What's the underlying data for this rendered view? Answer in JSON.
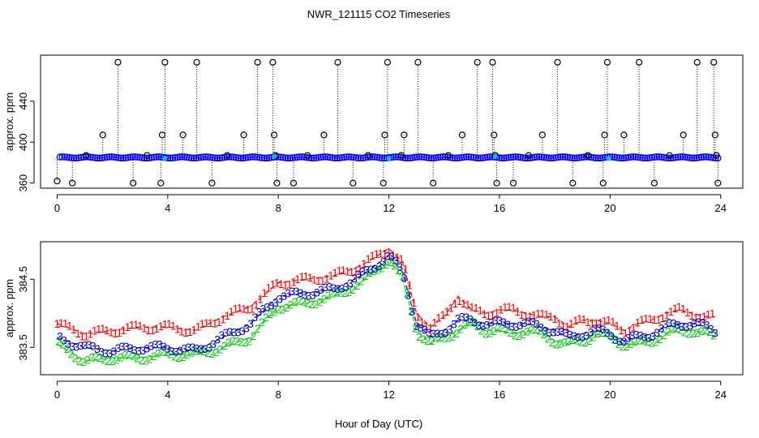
{
  "figure": {
    "title": "NWR_121115  CO2 Timeseries",
    "shared_xlabel": "Hour of Day (UTC)"
  },
  "colors": {
    "axis": "#000000",
    "stems": "#000000",
    "blue_series": "#0000ff",
    "cyan_points": "#00c8c8",
    "series1": "#ff0000",
    "series2": "#00cc00",
    "series3": "#0000cc"
  },
  "chart_data": [
    {
      "type": "scatter",
      "title": "NWR_121115  CO2 Timeseries",
      "xlabel": "",
      "ylabel": "approx. ppm",
      "xlim": [
        -0.6,
        24.8
      ],
      "ylim": [
        355,
        485
      ],
      "xticks": [
        0,
        4,
        8,
        12,
        16,
        20,
        24
      ],
      "yticks": [
        360,
        400,
        440
      ],
      "baseline": 385,
      "baseline_range": [
        0.1,
        23.9
      ],
      "series": [
        {
          "name": "outlier spikes (circles with dotted stems)",
          "marker": "open-circle",
          "points": [
            [
              0,
              362
            ],
            [
              0.55,
              360
            ],
            [
              1.05,
              387
            ],
            [
              1.65,
              407
            ],
            [
              2.2,
              478
            ],
            [
              2.75,
              360
            ],
            [
              3.25,
              387
            ],
            [
              3.75,
              360
            ],
            [
              3.8,
              407
            ],
            [
              3.9,
              478
            ],
            [
              4.55,
              407
            ],
            [
              5.05,
              478
            ],
            [
              5.6,
              360
            ],
            [
              6.15,
              387
            ],
            [
              6.75,
              407
            ],
            [
              7.25,
              478
            ],
            [
              7.8,
              478
            ],
            [
              7.85,
              407
            ],
            [
              7.9,
              387
            ],
            [
              7.95,
              360
            ],
            [
              8.55,
              360
            ],
            [
              9.05,
              387
            ],
            [
              9.65,
              407
            ],
            [
              10.15,
              478
            ],
            [
              10.7,
              360
            ],
            [
              11.25,
              387
            ],
            [
              11.8,
              360
            ],
            [
              11.85,
              407
            ],
            [
              11.95,
              478
            ],
            [
              12.45,
              387
            ],
            [
              12.55,
              407
            ],
            [
              13.05,
              478
            ],
            [
              13.6,
              360
            ],
            [
              14.15,
              387
            ],
            [
              14.65,
              407
            ],
            [
              15.2,
              478
            ],
            [
              15.75,
              478
            ],
            [
              15.8,
              407
            ],
            [
              15.85,
              387
            ],
            [
              15.9,
              360
            ],
            [
              16.5,
              360
            ],
            [
              17.05,
              387
            ],
            [
              17.55,
              407
            ],
            [
              18.1,
              478
            ],
            [
              18.65,
              360
            ],
            [
              19.2,
              387
            ],
            [
              19.75,
              360
            ],
            [
              19.8,
              407
            ],
            [
              19.9,
              478
            ],
            [
              20.5,
              407
            ],
            [
              21.05,
              478
            ],
            [
              21.6,
              360
            ],
            [
              22.15,
              387
            ],
            [
              22.65,
              407
            ],
            [
              23.15,
              478
            ],
            [
              23.75,
              478
            ],
            [
              23.8,
              407
            ],
            [
              23.85,
              387
            ],
            [
              23.9,
              360
            ]
          ]
        },
        {
          "name": "cyan points",
          "marker": "filled-dot",
          "points": [
            [
              3.9,
              384
            ],
            [
              7.85,
              386
            ],
            [
              12.0,
              384
            ],
            [
              15.85,
              386
            ],
            [
              19.95,
              384
            ]
          ]
        }
      ]
    },
    {
      "type": "line",
      "xlabel": "Hour of Day (UTC)",
      "ylabel": "approx. ppm",
      "xlim": [
        -0.6,
        24.8
      ],
      "ylim": [
        383.1,
        385.05
      ],
      "xticks": [
        0,
        4,
        8,
        12,
        16,
        20,
        24
      ],
      "yticks": [
        383.5,
        384.5
      ],
      "marker": "series number",
      "series": [
        {
          "name": "1",
          "x": [
            0,
            1,
            2,
            3,
            4,
            5,
            6,
            7,
            8,
            9,
            10,
            11,
            12,
            12.5,
            13,
            13.5,
            14,
            14.5,
            15,
            15.5,
            16,
            16.5,
            17,
            17.5,
            18,
            18.5,
            19,
            19.5,
            20,
            20.5,
            21,
            21.5,
            22,
            22.5,
            23,
            23.5,
            23.8
          ],
          "values": [
            383.85,
            383.7,
            383.75,
            383.8,
            383.8,
            383.75,
            383.95,
            384.1,
            384.45,
            384.5,
            384.55,
            384.7,
            384.95,
            384.75,
            384.0,
            383.8,
            383.95,
            384.25,
            384.05,
            384.0,
            384.05,
            384.05,
            384.0,
            383.95,
            383.95,
            383.8,
            383.9,
            383.9,
            383.85,
            383.75,
            383.85,
            383.9,
            384.0,
            384.05,
            384.0,
            383.95,
            383.95
          ]
        },
        {
          "name": "2",
          "x": [
            0,
            1,
            2,
            3,
            4,
            5,
            6,
            7,
            8,
            9,
            10,
            11,
            12,
            12.5,
            13,
            13.5,
            14,
            14.5,
            15,
            15.5,
            16,
            16.5,
            17,
            17.5,
            18,
            18.5,
            19,
            19.5,
            20,
            20.5,
            21,
            21.5,
            22,
            22.5,
            23,
            23.5,
            23.8
          ],
          "values": [
            383.55,
            383.3,
            383.35,
            383.35,
            383.4,
            383.4,
            383.5,
            383.65,
            384.1,
            384.15,
            384.25,
            384.45,
            384.8,
            384.5,
            383.75,
            383.55,
            383.65,
            383.75,
            383.85,
            383.75,
            383.75,
            383.7,
            383.75,
            383.7,
            383.6,
            383.55,
            383.6,
            383.7,
            383.65,
            383.55,
            383.55,
            383.6,
            383.7,
            383.75,
            383.75,
            383.7,
            383.65
          ]
        },
        {
          "name": "3",
          "x": [
            0,
            1,
            2,
            3,
            4,
            5,
            6,
            7,
            8,
            9,
            10,
            11,
            12,
            12.5,
            13,
            13.5,
            14,
            14.5,
            15,
            15.5,
            16,
            16.5,
            17,
            17.5,
            18,
            18.5,
            19,
            19.5,
            20,
            20.5,
            21,
            21.5,
            22,
            22.5,
            23,
            23.5,
            23.8
          ],
          "values": [
            383.65,
            383.5,
            383.45,
            383.5,
            383.5,
            383.45,
            383.65,
            383.85,
            384.25,
            384.3,
            384.35,
            384.55,
            384.85,
            384.6,
            383.85,
            383.65,
            383.75,
            383.9,
            383.9,
            383.85,
            383.85,
            383.85,
            383.85,
            383.8,
            383.75,
            383.65,
            383.7,
            383.75,
            383.7,
            383.6,
            383.65,
            383.7,
            383.8,
            383.85,
            383.85,
            383.8,
            383.75
          ]
        }
      ]
    }
  ]
}
